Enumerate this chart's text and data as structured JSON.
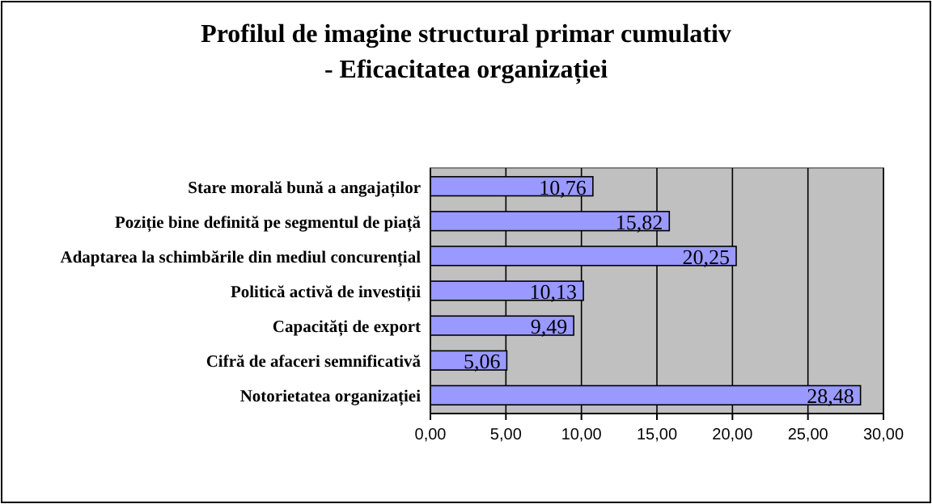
{
  "chart_data": {
    "type": "bar",
    "orientation": "horizontal",
    "title": "Profilul de imagine structural primar cumulativ\n- Eficacitatea organizației",
    "categories": [
      "Stare morală bună a angajaților",
      "Poziție bine definită pe segmentul de piață",
      "Adaptarea la schimbările din mediul concurențial",
      "Politică activă de investiții",
      "Capacități de export",
      "Cifră de afaceri semnificativă",
      "Notorietatea organizației"
    ],
    "values": [
      10.76,
      15.82,
      20.25,
      10.13,
      9.49,
      5.06,
      28.48
    ],
    "value_labels": [
      "10,76",
      "15,82",
      "20,25",
      "10,13",
      "9,49",
      "5,06",
      "28,48"
    ],
    "color": "#9999ff",
    "xlim": [
      0,
      30
    ],
    "xticks": [
      {
        "value": 0,
        "label": "0,00"
      },
      {
        "value": 5,
        "label": "5,00"
      },
      {
        "value": 10,
        "label": "10,00"
      },
      {
        "value": 15,
        "label": "15,00"
      },
      {
        "value": 20,
        "label": "20,00"
      },
      {
        "value": 25,
        "label": "25,00"
      },
      {
        "value": 30,
        "label": "30,00"
      }
    ],
    "grid": "x"
  }
}
